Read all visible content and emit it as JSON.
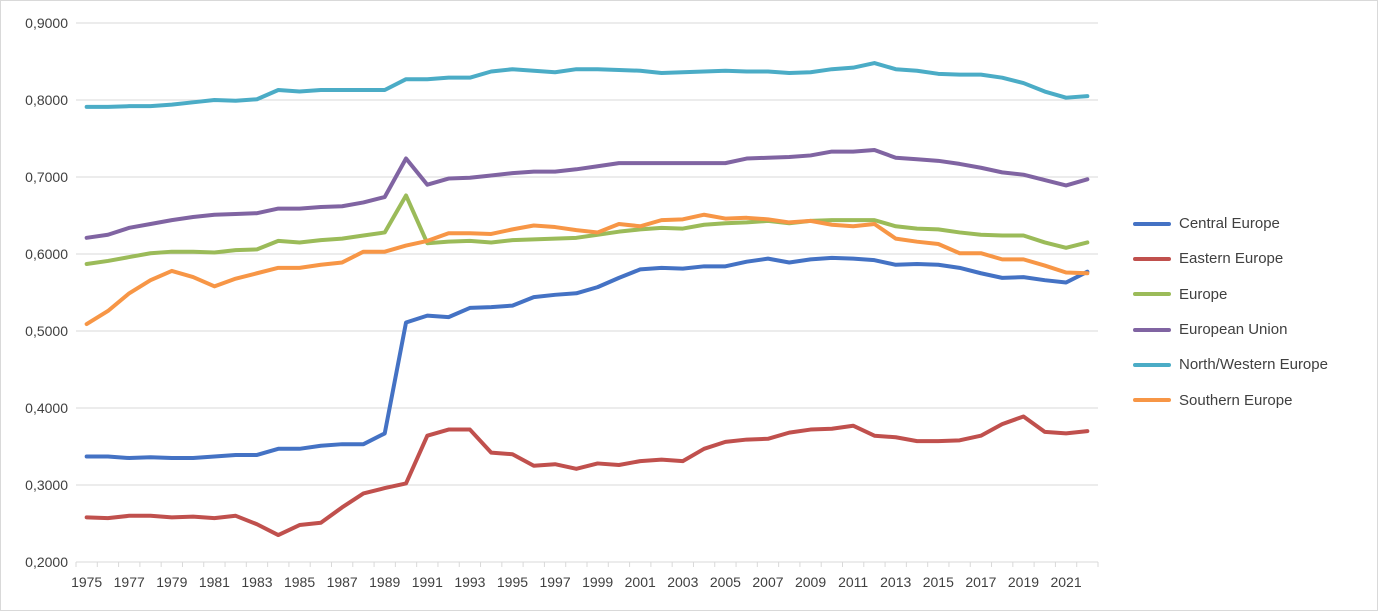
{
  "chart_data": {
    "type": "line",
    "title": "",
    "xlabel": "",
    "ylabel": "",
    "ylim": [
      0.2,
      0.9
    ],
    "y_ticks": [
      "0,2000",
      "0,3000",
      "0,4000",
      "0,5000",
      "0,6000",
      "0,7000",
      "0,8000",
      "0,9000"
    ],
    "x_tick_labels": [
      "1975",
      "1977",
      "1979",
      "1981",
      "1983",
      "1985",
      "1987",
      "1989",
      "1991",
      "1993",
      "1995",
      "1997",
      "1999",
      "2001",
      "2003",
      "2005",
      "2007",
      "2009",
      "2011",
      "2013",
      "2015",
      "2017",
      "2019",
      "2021"
    ],
    "x": [
      1975,
      1976,
      1977,
      1978,
      1979,
      1980,
      1981,
      1982,
      1983,
      1984,
      1985,
      1986,
      1987,
      1988,
      1989,
      1990,
      1991,
      1992,
      1993,
      1994,
      1995,
      1996,
      1997,
      1998,
      1999,
      2000,
      2001,
      2002,
      2003,
      2004,
      2005,
      2006,
      2007,
      2008,
      2009,
      2010,
      2011,
      2012,
      2013,
      2014,
      2015,
      2016,
      2017,
      2018,
      2019,
      2020,
      2021,
      2022
    ],
    "grid": "horizontal",
    "legend_position": "right",
    "series": [
      {
        "name": "Central Europe",
        "color": "#4472C4",
        "values": [
          0.337,
          0.337,
          0.335,
          0.336,
          0.335,
          0.335,
          0.337,
          0.339,
          0.339,
          0.347,
          0.347,
          0.351,
          0.353,
          0.353,
          0.367,
          0.511,
          0.52,
          0.518,
          0.53,
          0.531,
          0.533,
          0.544,
          0.547,
          0.549,
          0.557,
          0.569,
          0.58,
          0.582,
          0.581,
          0.584,
          0.584,
          0.59,
          0.594,
          0.589,
          0.593,
          0.595,
          0.594,
          0.592,
          0.586,
          0.587,
          0.586,
          0.582,
          0.575,
          0.569,
          0.57,
          0.566,
          0.563,
          0.577
        ]
      },
      {
        "name": "Eastern Europe",
        "color": "#C0504D",
        "values": [
          0.258,
          0.257,
          0.26,
          0.26,
          0.258,
          0.259,
          0.257,
          0.26,
          0.249,
          0.235,
          0.248,
          0.251,
          0.271,
          0.289,
          0.296,
          0.302,
          0.364,
          0.372,
          0.372,
          0.342,
          0.34,
          0.325,
          0.327,
          0.321,
          0.328,
          0.326,
          0.331,
          0.333,
          0.331,
          0.347,
          0.356,
          0.359,
          0.36,
          0.368,
          0.372,
          0.373,
          0.377,
          0.364,
          0.362,
          0.357,
          0.357,
          0.358,
          0.364,
          0.379,
          0.389,
          0.369,
          0.367,
          0.37
        ]
      },
      {
        "name": "Europe",
        "color": "#9BBB59",
        "values": [
          0.587,
          0.591,
          0.596,
          0.601,
          0.603,
          0.603,
          0.602,
          0.605,
          0.606,
          0.617,
          0.615,
          0.618,
          0.62,
          0.624,
          0.628,
          0.676,
          0.614,
          0.616,
          0.617,
          0.615,
          0.618,
          0.619,
          0.62,
          0.621,
          0.625,
          0.629,
          0.632,
          0.634,
          0.633,
          0.638,
          0.64,
          0.641,
          0.643,
          0.64,
          0.643,
          0.644,
          0.644,
          0.644,
          0.636,
          0.633,
          0.632,
          0.628,
          0.625,
          0.624,
          0.624,
          0.615,
          0.608,
          0.615
        ]
      },
      {
        "name": "European Union",
        "color": "#8064A2",
        "values": [
          0.621,
          0.625,
          0.634,
          0.639,
          0.644,
          0.648,
          0.651,
          0.652,
          0.653,
          0.659,
          0.659,
          0.661,
          0.662,
          0.667,
          0.674,
          0.724,
          0.69,
          0.698,
          0.699,
          0.702,
          0.705,
          0.707,
          0.707,
          0.71,
          0.714,
          0.718,
          0.718,
          0.718,
          0.718,
          0.718,
          0.718,
          0.724,
          0.725,
          0.726,
          0.728,
          0.733,
          0.733,
          0.735,
          0.725,
          0.723,
          0.721,
          0.717,
          0.712,
          0.706,
          0.703,
          0.696,
          0.689,
          0.697
        ]
      },
      {
        "name": "North/Western Europe",
        "color": "#4BACC6",
        "values": [
          0.791,
          0.791,
          0.792,
          0.792,
          0.794,
          0.797,
          0.8,
          0.799,
          0.801,
          0.813,
          0.811,
          0.813,
          0.813,
          0.813,
          0.813,
          0.827,
          0.827,
          0.829,
          0.829,
          0.837,
          0.84,
          0.838,
          0.836,
          0.84,
          0.84,
          0.839,
          0.838,
          0.835,
          0.836,
          0.837,
          0.838,
          0.837,
          0.837,
          0.835,
          0.836,
          0.84,
          0.842,
          0.848,
          0.84,
          0.838,
          0.834,
          0.833,
          0.833,
          0.829,
          0.822,
          0.811,
          0.803,
          0.805
        ]
      },
      {
        "name": "Southern Europe",
        "color": "#F79646",
        "values": [
          0.509,
          0.526,
          0.549,
          0.566,
          0.578,
          0.57,
          0.558,
          0.568,
          0.575,
          0.582,
          0.582,
          0.586,
          0.589,
          0.603,
          0.603,
          0.611,
          0.617,
          0.627,
          0.627,
          0.626,
          0.632,
          0.637,
          0.635,
          0.631,
          0.628,
          0.639,
          0.636,
          0.644,
          0.645,
          0.651,
          0.646,
          0.647,
          0.645,
          0.641,
          0.643,
          0.638,
          0.636,
          0.639,
          0.62,
          0.616,
          0.613,
          0.601,
          0.601,
          0.593,
          0.593,
          0.585,
          0.576,
          0.575
        ]
      }
    ]
  }
}
